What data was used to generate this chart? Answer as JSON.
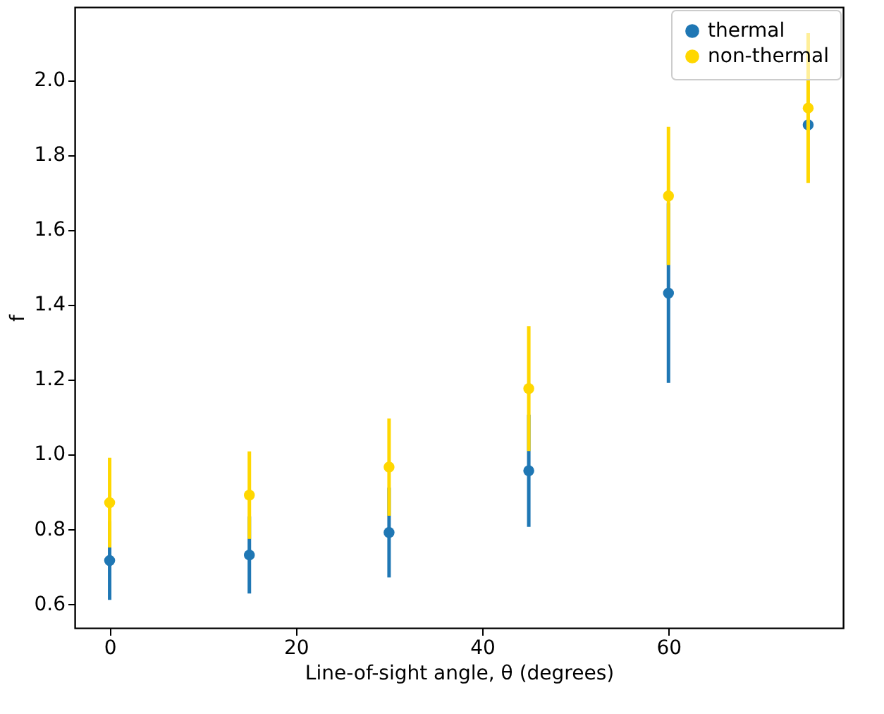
{
  "chart_data": {
    "type": "scatter",
    "xlabel": "Line-of-sight angle, θ (degrees)",
    "ylabel": "f",
    "x": [
      0,
      15,
      30,
      45,
      60,
      75
    ],
    "series": [
      {
        "name": "thermal",
        "color": "#1f77b4",
        "values": [
          0.715,
          0.73,
          0.79,
          0.955,
          1.43,
          1.88
        ],
        "errors": [
          0.105,
          0.103,
          0.12,
          0.15,
          0.24,
          null
        ]
      },
      {
        "name": "non-thermal",
        "color": "#ffd700",
        "values": [
          0.87,
          0.89,
          0.965,
          1.175,
          1.69,
          1.925
        ],
        "errors": [
          0.12,
          0.117,
          0.13,
          0.167,
          0.185,
          0.2
        ]
      }
    ],
    "xlim": [
      -3.75,
      78.75
    ],
    "xticks": [
      0,
      20,
      40,
      60
    ],
    "ylim": [
      0.535,
      2.195
    ],
    "yticks": [
      0.6,
      0.8,
      {
        "value": 1,
        "label": "1.0"
      },
      1.2,
      1.4,
      1.6,
      1.8,
      {
        "value": 2,
        "label": "2.0"
      }
    ],
    "grid": false,
    "legend": "top right",
    "marker": "circle"
  }
}
